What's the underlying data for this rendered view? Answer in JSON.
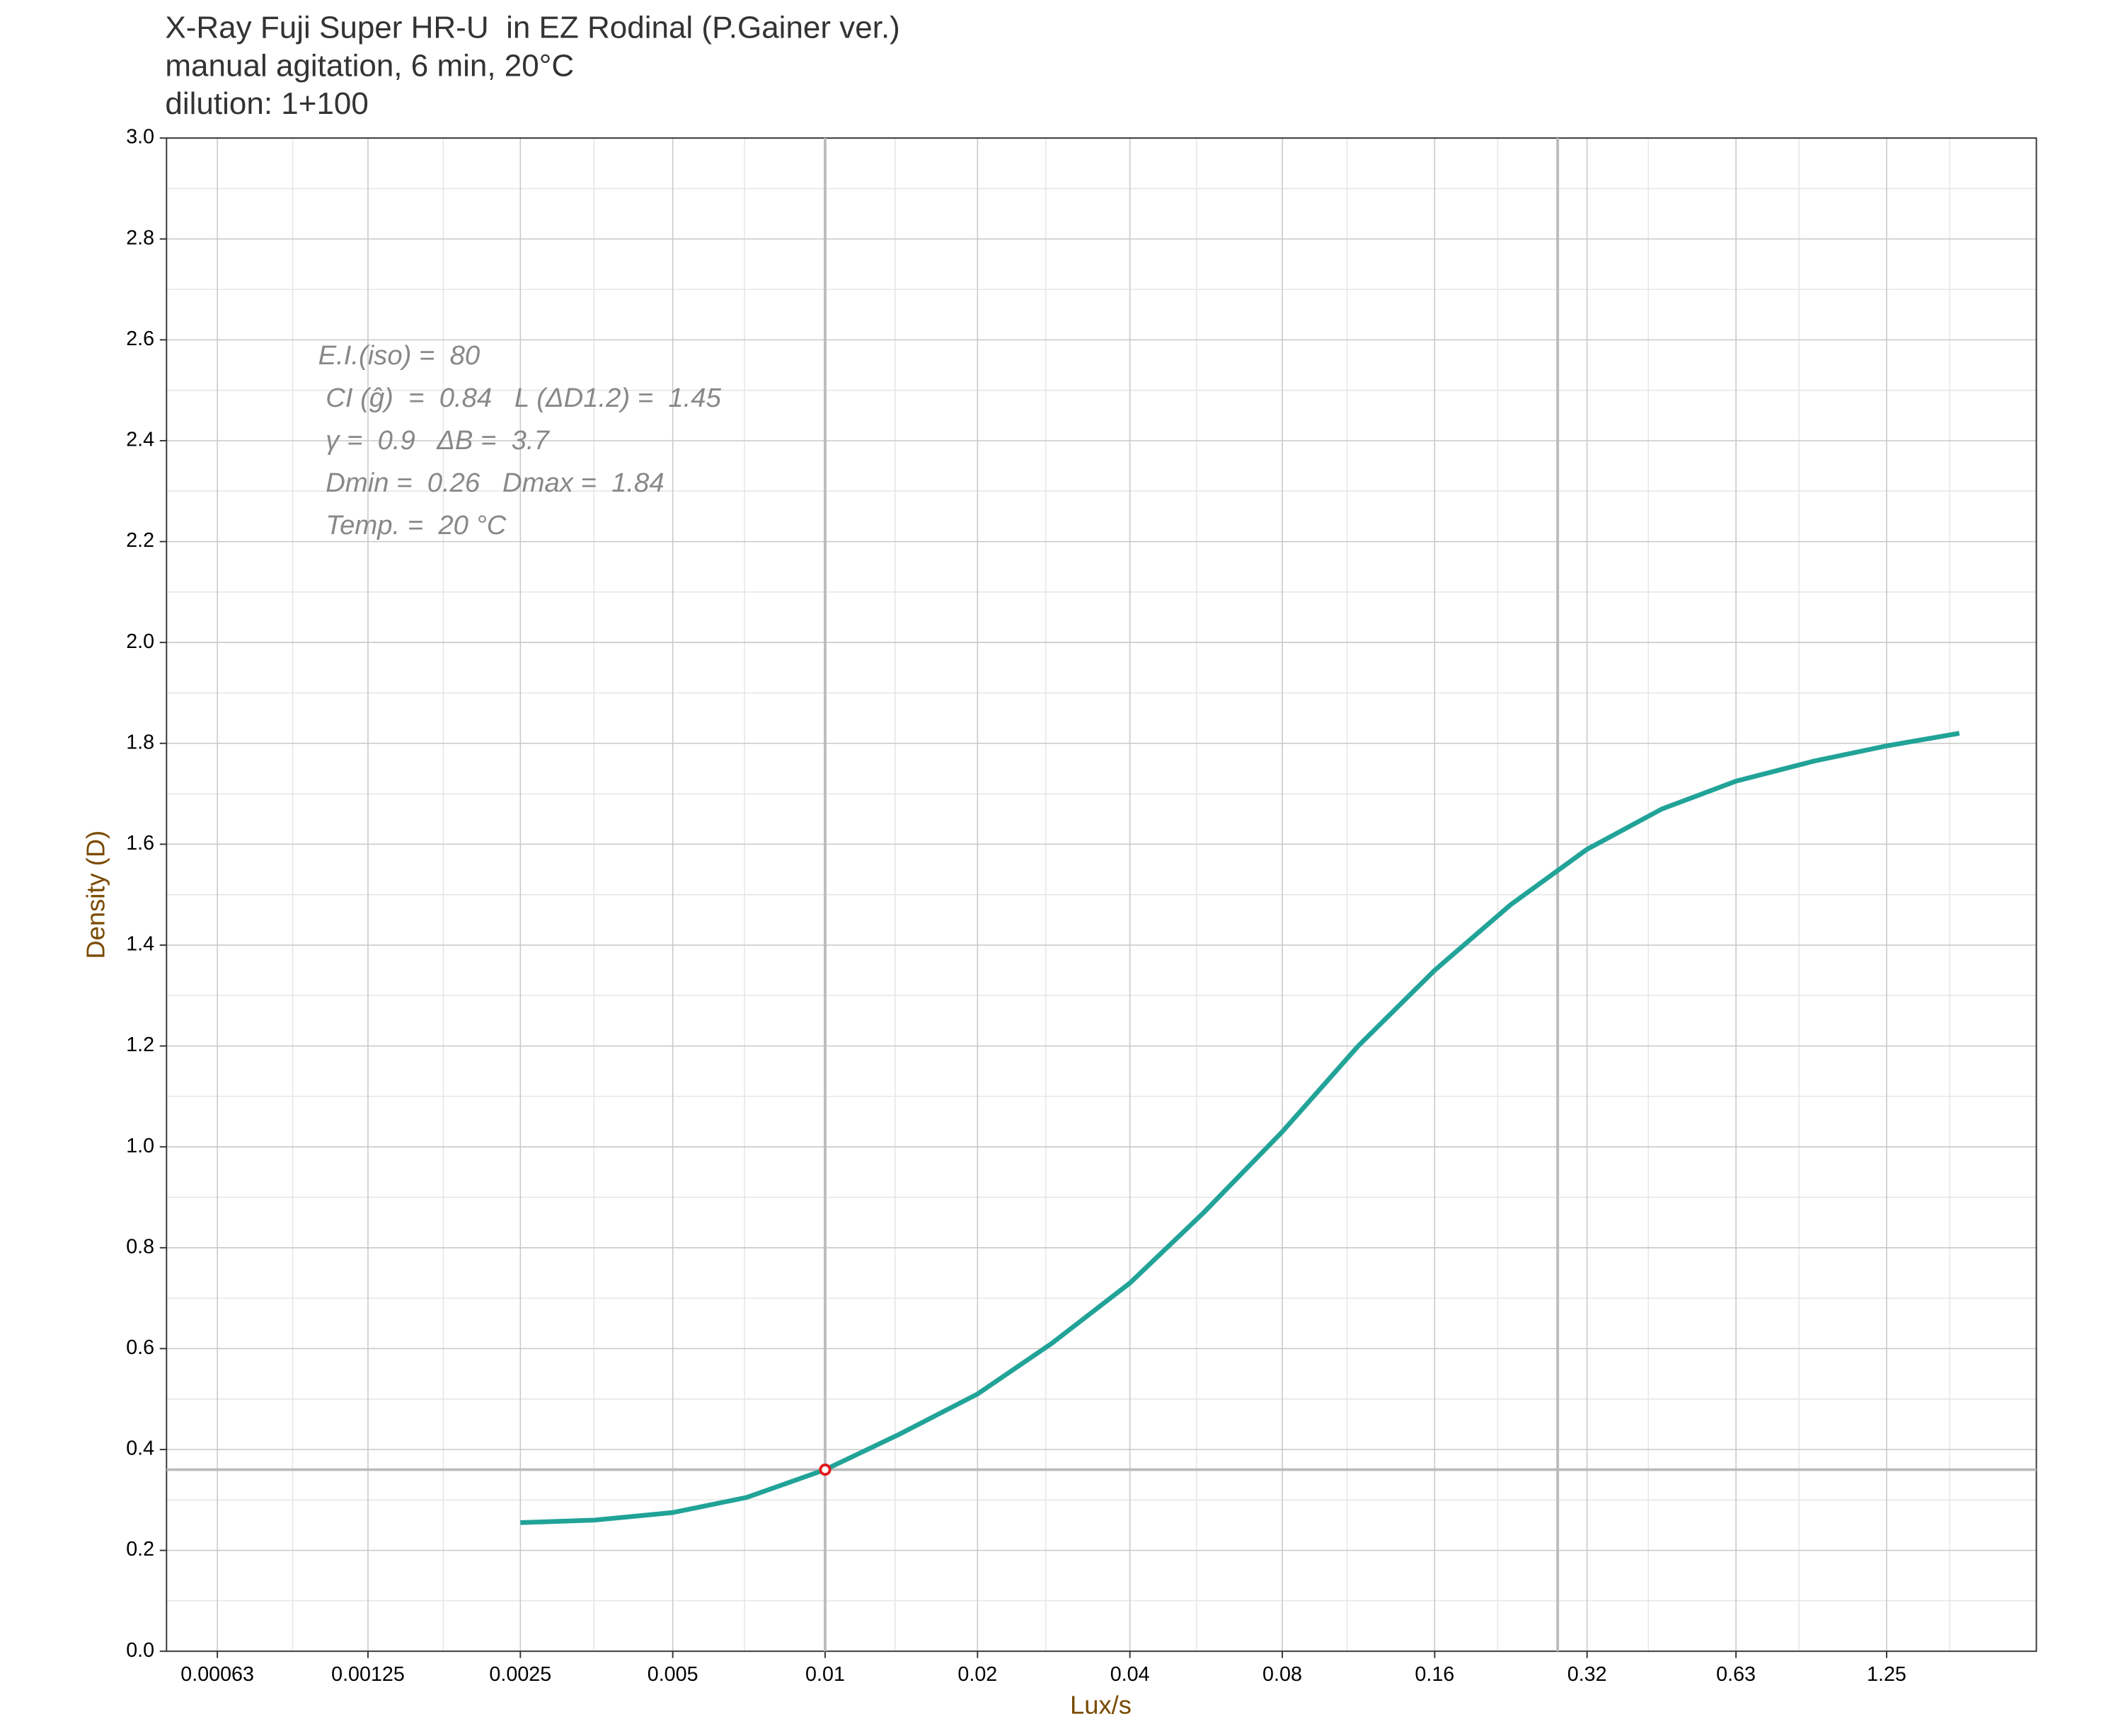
{
  "chart_data": {
    "type": "line",
    "title": [
      "X-Ray Fuji Super HR-U  in EZ Rodinal (P.Gainer ver.)",
      "manual agitation, 6 min, 20°C",
      "dilution: 1+100"
    ],
    "x_label": "Lux/s",
    "y_label": "Density (D)",
    "log_x": true,
    "log_base": 2,
    "grid": true,
    "color": "#21a398",
    "xlim": [
      0.0005,
      2.47
    ],
    "ylim": [
      0,
      3
    ],
    "xticks": [
      0.00063,
      0.00125,
      0.0025,
      0.005,
      0.01,
      0.02,
      0.04,
      0.08,
      0.16,
      0.32,
      0.63,
      1.25
    ],
    "yticks": [
      {
        "value": 0,
        "label": "0.0"
      },
      0.2,
      0.4,
      0.6,
      0.8,
      {
        "value": 1,
        "label": "1.0"
      },
      1.2,
      1.4,
      1.6,
      1.8,
      {
        "value": 2,
        "label": "2.0"
      },
      2.2,
      2.4,
      2.6,
      2.8,
      {
        "value": 3,
        "label": "3.0"
      }
    ],
    "x": [
      0.0025,
      0.0035,
      0.005,
      0.007,
      0.01,
      0.014,
      0.02,
      0.028,
      0.04,
      0.056,
      0.08,
      0.113,
      0.16,
      0.226,
      0.32,
      0.45,
      0.63,
      0.9,
      1.25,
      1.74
    ],
    "values": [
      0.255,
      0.26,
      0.275,
      0.305,
      0.36,
      0.43,
      0.51,
      0.61,
      0.73,
      0.87,
      1.03,
      1.2,
      1.35,
      1.48,
      1.59,
      1.67,
      1.725,
      1.765,
      1.795,
      1.82
    ],
    "reference_x": [
      0.01,
      0.28
    ],
    "reference_y": [
      0.36
    ],
    "speed_point": {
      "x": 0.01,
      "y": 0.36
    },
    "annotations": [
      "E.I.(iso) =  80",
      " CI (ĝ)  =  0.84   L (ΔD1.2) =  1.45",
      " γ =  0.9   ΔB =  3.7",
      " Dmin =  0.26   Dmax =  1.84",
      " Temp. =  20 °C"
    ]
  }
}
